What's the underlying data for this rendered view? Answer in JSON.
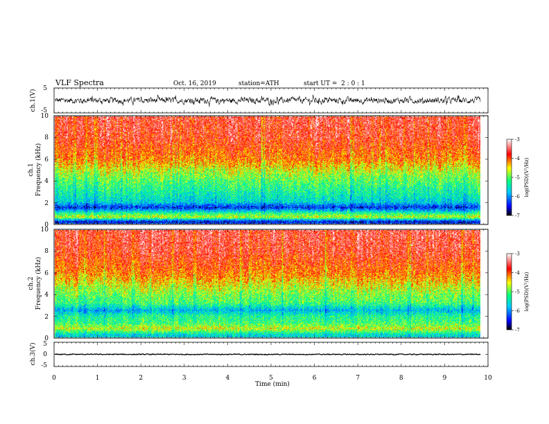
{
  "header": {
    "title": "VLF Spectra",
    "date": "Oct. 16, 2019",
    "station": "station=ATH",
    "start": "start UT =  2 : 0 : 1"
  },
  "chart_data": [
    {
      "type": "line",
      "id": "ch1-waveform",
      "ylabel": "ch.1(V)",
      "ylim": [
        -5,
        5
      ],
      "y_ticks": [
        "5",
        "-5"
      ],
      "xlim": [
        0,
        10
      ],
      "description_values": {
        "center": 0.0,
        "typical_amplitude": 1.2,
        "peak_amplitude": 2.5
      }
    },
    {
      "type": "heatmap",
      "id": "ch1-spectrogram",
      "ylabel": "ch.1\nFrequency (kHz)",
      "ylabel_lines": [
        "ch.1",
        "Frequency (kHz)"
      ],
      "ylim": [
        0,
        10
      ],
      "y_ticks": [
        "0",
        "2",
        "4",
        "6",
        "8",
        "10"
      ],
      "xlim": [
        0,
        9.83
      ],
      "colorbar": {
        "label": "log(PSD)(V²/Hz)",
        "range": [
          -7,
          -3
        ],
        "ticks": [
          "-3",
          "-4",
          "-5",
          "-6",
          "-7"
        ]
      },
      "profile": [
        {
          "f": 0.2,
          "v": -6.4
        },
        {
          "f": 0.6,
          "v": -4.6
        },
        {
          "f": 1.0,
          "v": -5.3
        },
        {
          "f": 1.5,
          "v": -6.4
        },
        {
          "f": 2.0,
          "v": -5.6
        },
        {
          "f": 3.0,
          "v": -5.3
        },
        {
          "f": 4.0,
          "v": -5.0
        },
        {
          "f": 5.0,
          "v": -4.6
        },
        {
          "f": 6.0,
          "v": -4.1
        },
        {
          "f": 8.0,
          "v": -3.7
        },
        {
          "f": 10.0,
          "v": -3.6
        }
      ]
    },
    {
      "type": "heatmap",
      "id": "ch2-spectrogram",
      "ylabel": "ch.2\nFrequency (kHz)",
      "ylabel_lines": [
        "ch.2",
        "Frequency (kHz)"
      ],
      "ylim": [
        0,
        10
      ],
      "y_ticks": [
        "0",
        "2",
        "4",
        "6",
        "8",
        "10"
      ],
      "xlim": [
        0,
        9.83
      ],
      "colorbar": {
        "label": "log(PSD)(V²/Hz)",
        "range": [
          -7,
          -3
        ],
        "ticks": [
          "-3",
          "-4",
          "-5",
          "-6",
          "-7"
        ]
      },
      "profile": [
        {
          "f": 0.2,
          "v": -5.6
        },
        {
          "f": 0.8,
          "v": -4.6
        },
        {
          "f": 1.3,
          "v": -5.1
        },
        {
          "f": 2.0,
          "v": -5.3
        },
        {
          "f": 2.5,
          "v": -5.8
        },
        {
          "f": 3.2,
          "v": -5.1
        },
        {
          "f": 4.0,
          "v": -4.9
        },
        {
          "f": 5.0,
          "v": -4.5
        },
        {
          "f": 6.0,
          "v": -4.1
        },
        {
          "f": 8.0,
          "v": -3.7
        },
        {
          "f": 10.0,
          "v": -3.6
        }
      ]
    },
    {
      "type": "line",
      "id": "ch3-waveform",
      "ylabel": "ch.3(V)",
      "ylim": [
        -5,
        5
      ],
      "y_ticks": [
        "5",
        "0",
        "-5"
      ],
      "xlim": [
        0,
        10
      ],
      "description_values": {
        "center": 0.0,
        "typical_amplitude": 0.3
      }
    }
  ],
  "x_axis": {
    "label": "Time (min)",
    "ticks": [
      "0",
      "1",
      "2",
      "3",
      "4",
      "5",
      "6",
      "7",
      "8",
      "9",
      "10"
    ],
    "range": [
      0,
      10
    ]
  },
  "colorscale": [
    "#000000",
    "#0000ff",
    "#00c8ff",
    "#00ff80",
    "#ffff00",
    "#ff0000",
    "#ffffff"
  ]
}
